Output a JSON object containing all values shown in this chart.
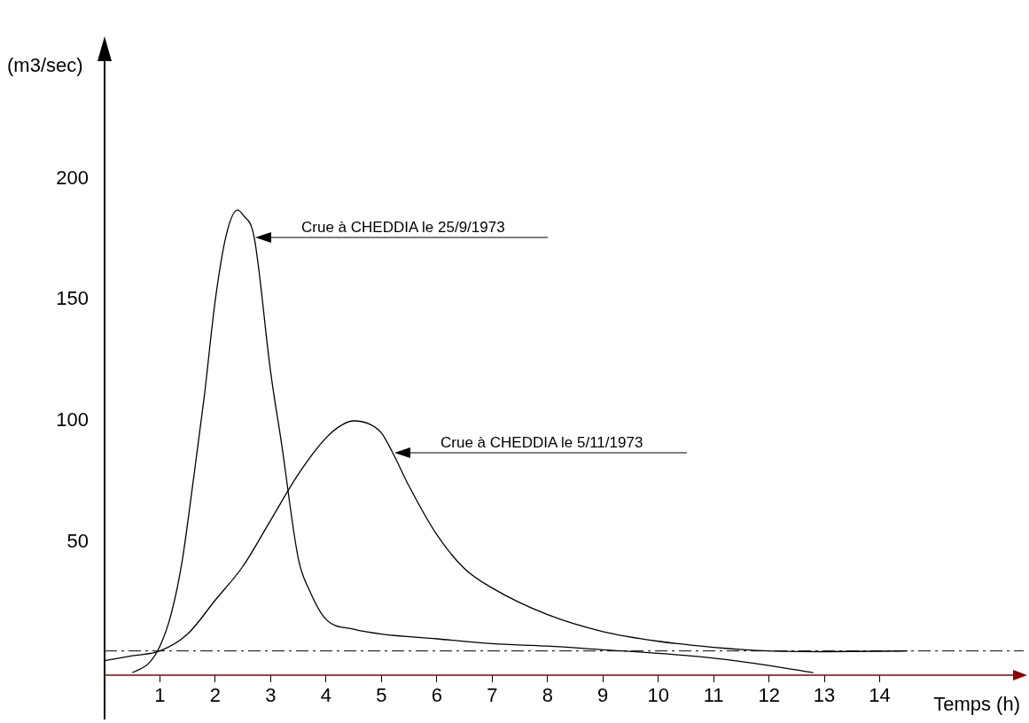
{
  "chart_data": {
    "type": "line",
    "xlabel": "Temps (h)",
    "ylabel": "(m3/sec)",
    "xlim": [
      0,
      16.6
    ],
    "xticks": [
      1,
      2,
      3,
      4,
      5,
      6,
      7,
      8,
      9,
      10,
      11,
      12,
      13,
      14
    ],
    "ylim": [
      -5,
      250
    ],
    "yticks": [
      50,
      100,
      150,
      200
    ],
    "grid": false,
    "legend": false,
    "marker": "none",
    "line_style": "solid",
    "series": [
      {
        "color": "#000000",
        "x": [
          0.5,
          0.8,
          1.0,
          1.2,
          1.4,
          1.6,
          1.8,
          2.0,
          2.2,
          2.4,
          2.5,
          2.7,
          3.0,
          3.2,
          3.5,
          3.7,
          4.0,
          4.5,
          5,
          6,
          7,
          8,
          9,
          10,
          11,
          12,
          12.8
        ],
        "values": [
          -4,
          0,
          7,
          20,
          42,
          75,
          110,
          150,
          177,
          187,
          185,
          176,
          120,
          90,
          43,
          30,
          18,
          14,
          12,
          10,
          8,
          7,
          5.5,
          4,
          2,
          -1,
          -4
        ]
      },
      {
        "color": "#000000",
        "x": [
          0,
          0.5,
          1.0,
          1.5,
          2,
          2.5,
          3,
          3.5,
          4,
          4.3,
          4.5,
          4.8,
          5,
          5.2,
          5.5,
          6,
          6.5,
          7,
          8,
          9,
          10,
          11,
          12,
          13,
          14.5
        ],
        "values": [
          1,
          3,
          5,
          12,
          26,
          40,
          59,
          78,
          93,
          98.5,
          100,
          98.5,
          95,
          87,
          73,
          53,
          39,
          31,
          20,
          13,
          9,
          6.5,
          5,
          4.7,
          5
        ]
      }
    ],
    "ref_lines": [
      {
        "axis": "y",
        "value": 5,
        "line_style": "dashdot",
        "color": "#000000"
      }
    ],
    "annotations": [
      "Crue à CHEDDIA le 25/9/1973",
      "Crue à CHEDDIA le 5/11/1973"
    ]
  }
}
